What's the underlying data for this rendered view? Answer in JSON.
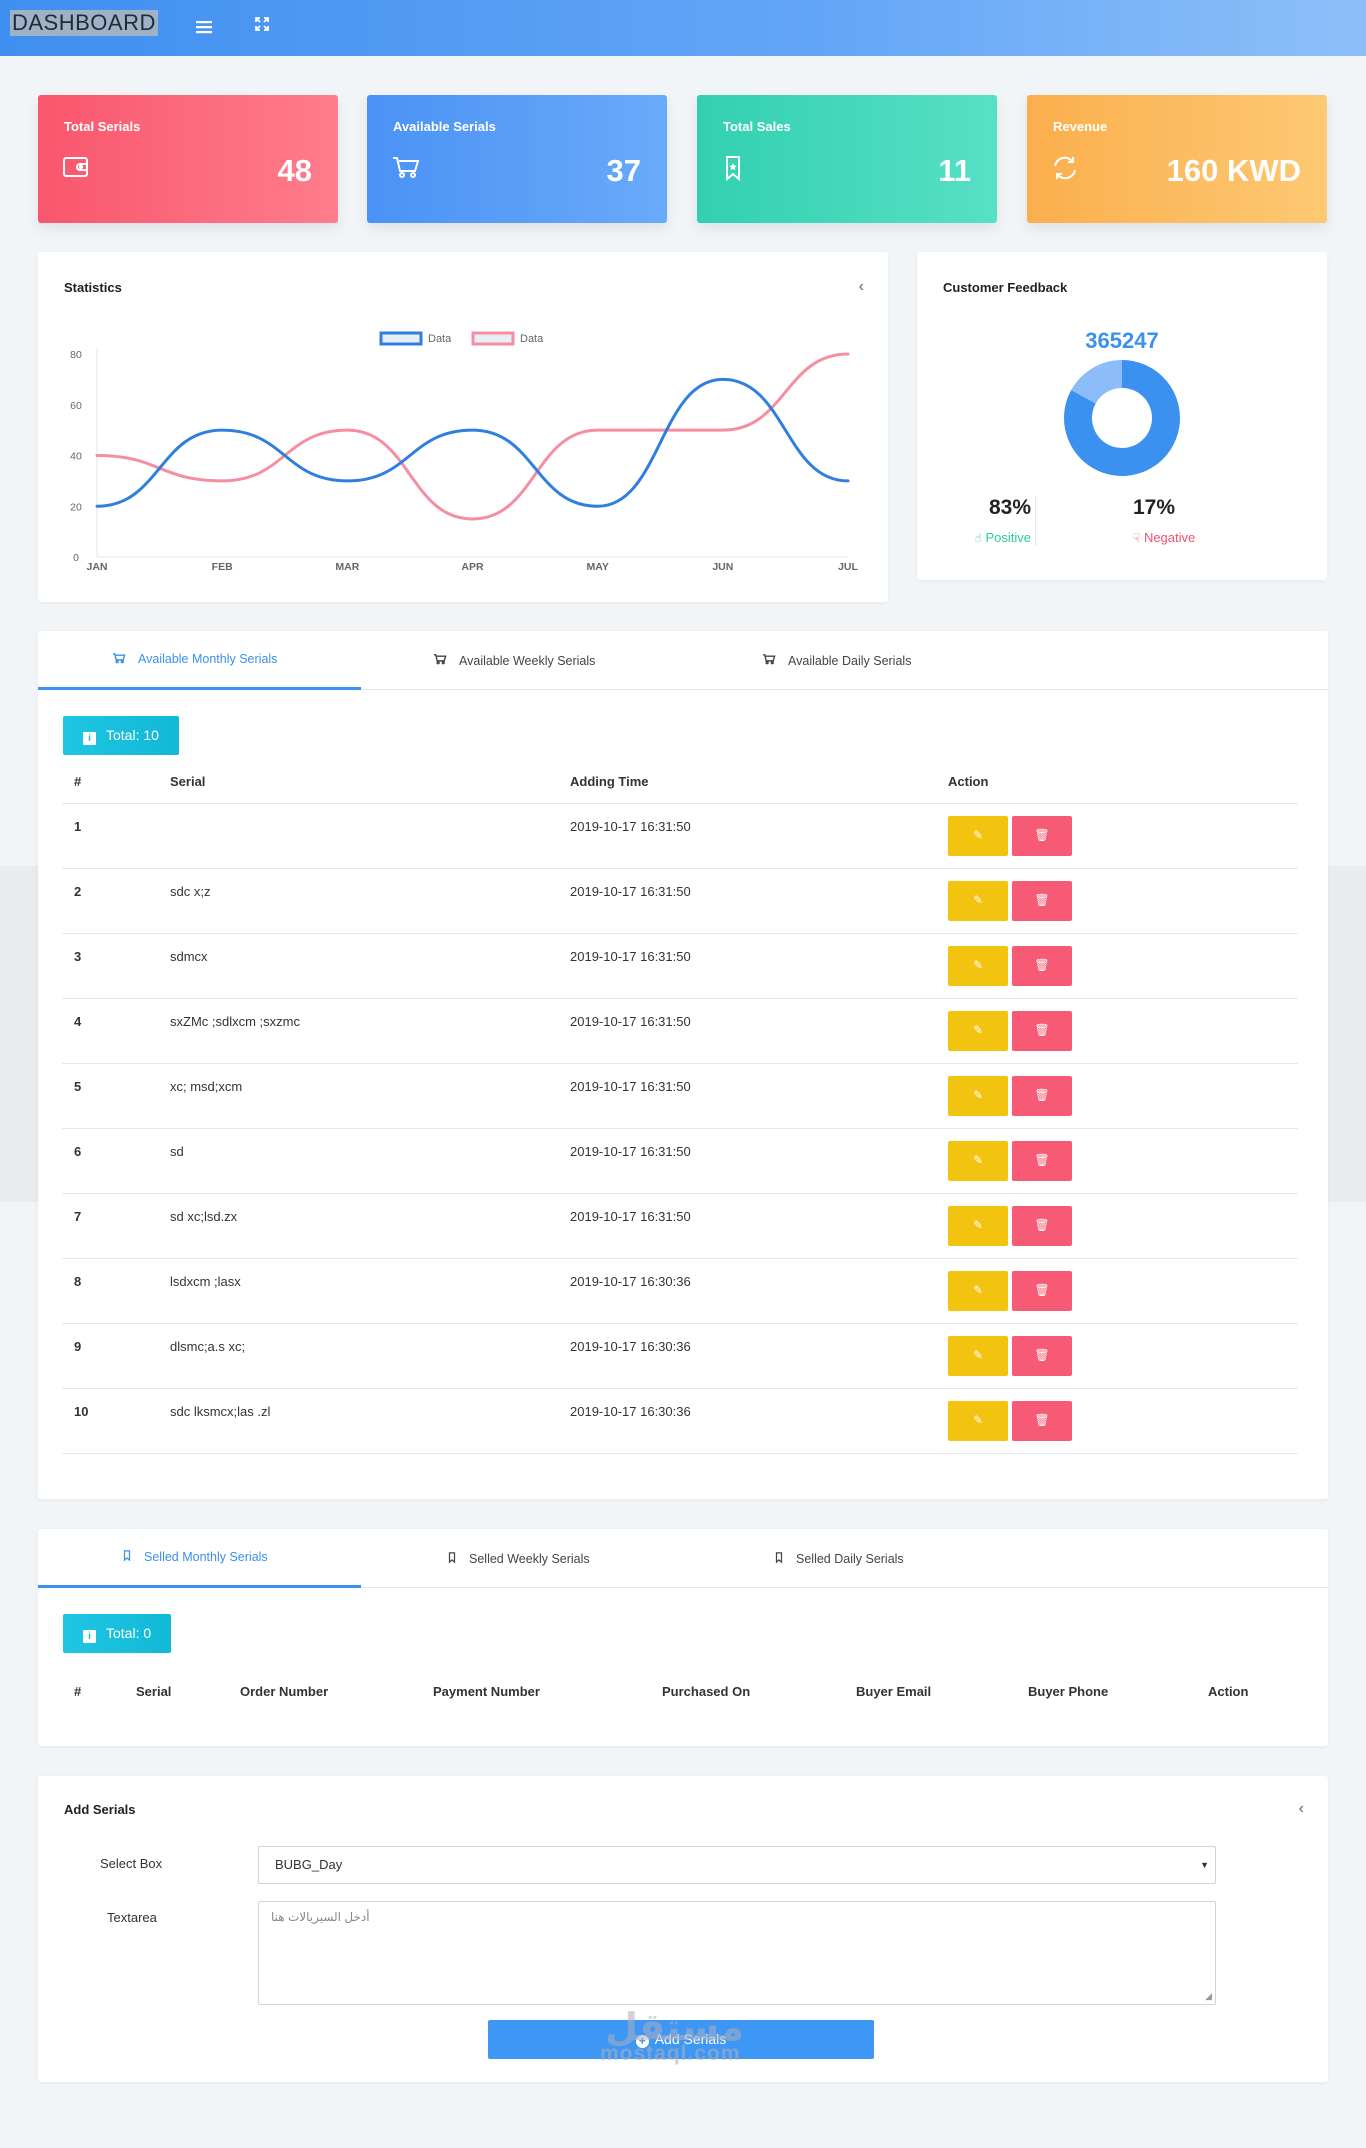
{
  "header": {
    "brand": "DASHBOARD",
    "menu_icon": "menu-icon",
    "expand_icon": "expand-icon"
  },
  "stats": [
    {
      "label": "Total Serials",
      "value": "48",
      "icon": "wallet-icon",
      "color": "#f9566d"
    },
    {
      "label": "Available Serials",
      "value": "37",
      "icon": "cart-icon",
      "color": "#4a92f5"
    },
    {
      "label": "Total Sales",
      "value": "11",
      "icon": "bookmark-icon",
      "color": "#32d0b1"
    },
    {
      "label": "Revenue",
      "value": "160 KWD",
      "icon": "refresh-icon",
      "color": "#fbae4d"
    }
  ],
  "statistics": {
    "title": "Statistics",
    "chart_data": {
      "type": "line",
      "title": "Statistics",
      "categories": [
        "JAN",
        "FEB",
        "MAR",
        "APR",
        "MAY",
        "JUN",
        "JUL"
      ],
      "ylim": [
        0,
        80
      ],
      "yticks": [
        0,
        20,
        40,
        60,
        80
      ],
      "legend_position": "top-center",
      "series": [
        {
          "name": "Data",
          "color": "#2f7fe0",
          "values": [
            20,
            50,
            30,
            50,
            20,
            70,
            30
          ]
        },
        {
          "name": "Data",
          "color": "#f58ea0",
          "values": [
            40,
            30,
            50,
            15,
            50,
            50,
            80
          ]
        }
      ]
    }
  },
  "feedback": {
    "title": "Customer Feedback",
    "total": "365247",
    "positive_pct": "83%",
    "positive_label": "Positive",
    "negative_pct": "17%",
    "negative_label": "Negative",
    "positive_value": 83,
    "negative_value": 17,
    "colors": {
      "positive": "#3b91f0",
      "negative": "#8cbdf8",
      "positive_text": "#2ccca0",
      "negative_text": "#f0546e"
    }
  },
  "available": {
    "tabs": [
      "Available Monthly Serials",
      "Available Weekly Serials",
      "Available Daily Serials"
    ],
    "total": "Total: 10",
    "columns": [
      "#",
      "Serial",
      "Adding Time",
      "Action"
    ],
    "rows": [
      {
        "num": "1",
        "serial": "",
        "time": "2019-10-17 16:31:50"
      },
      {
        "num": "2",
        "serial": "sdc x;z",
        "time": "2019-10-17 16:31:50"
      },
      {
        "num": "3",
        "serial": "sdmcx",
        "time": "2019-10-17 16:31:50"
      },
      {
        "num": "4",
        "serial": "sxZMc ;sdlxcm ;sxzmc",
        "time": "2019-10-17 16:31:50"
      },
      {
        "num": "5",
        "serial": "xc; msd;xcm",
        "time": "2019-10-17 16:31:50"
      },
      {
        "num": "6",
        "serial": "sd",
        "time": "2019-10-17 16:31:50"
      },
      {
        "num": "7",
        "serial": "sd xc;lsd.zx",
        "time": "2019-10-17 16:31:50"
      },
      {
        "num": "8",
        "serial": "lsdxcm ;lasx",
        "time": "2019-10-17 16:30:36"
      },
      {
        "num": "9",
        "serial": "dlsmc;a.s xc;",
        "time": "2019-10-17 16:30:36"
      },
      {
        "num": "10",
        "serial": "sdc lksmcx;las .zl",
        "time": "2019-10-17 16:30:36"
      }
    ]
  },
  "selled": {
    "tabs": [
      "Selled Monthly Serials",
      "Selled Weekly Serials",
      "Selled Daily Serials"
    ],
    "total": "Total: 0",
    "columns": [
      "#",
      "Serial",
      "Order Number",
      "Payment Number",
      "Purchased On",
      "Buyer Email",
      "Buyer Phone",
      "Action"
    ]
  },
  "add_serials": {
    "title": "Add Serials",
    "select_label": "Select Box",
    "select_value": "BUBG_Day",
    "textarea_label": "Textarea",
    "textarea_placeholder": "أدخل السيريالات هنا",
    "button_label": "Add Serials"
  },
  "watermark": {
    "latin": "mostaql.com",
    "arabic": "مستقل"
  }
}
